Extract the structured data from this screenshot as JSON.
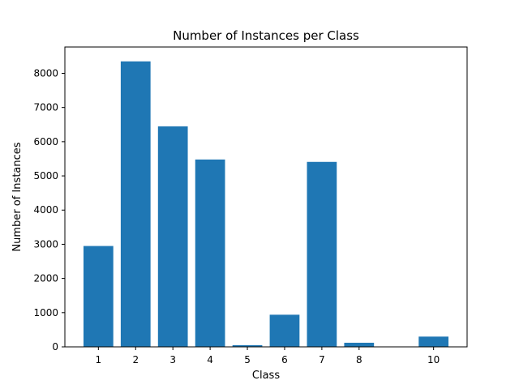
{
  "chart_data": {
    "type": "bar",
    "title": "Number of Instances per Class",
    "xlabel": "Class",
    "ylabel": "Number of Instances",
    "categories": [
      "1",
      "2",
      "3",
      "4",
      "5",
      "6",
      "7",
      "8",
      "10"
    ],
    "x": [
      1,
      2,
      3,
      4,
      5,
      6,
      7,
      8,
      10
    ],
    "values": [
      2950,
      8350,
      6450,
      5480,
      50,
      940,
      5410,
      120,
      300
    ],
    "xlim": [
      0.1,
      10.9
    ],
    "ylim": [
      0,
      8770
    ],
    "yticks": [
      0,
      1000,
      2000,
      3000,
      4000,
      5000,
      6000,
      7000,
      8000
    ],
    "ytick_labels": [
      "0",
      "1000",
      "2000",
      "3000",
      "4000",
      "5000",
      "6000",
      "7000",
      "8000"
    ],
    "grid": false,
    "legend": "none",
    "bar_color": "#1f77b4"
  }
}
